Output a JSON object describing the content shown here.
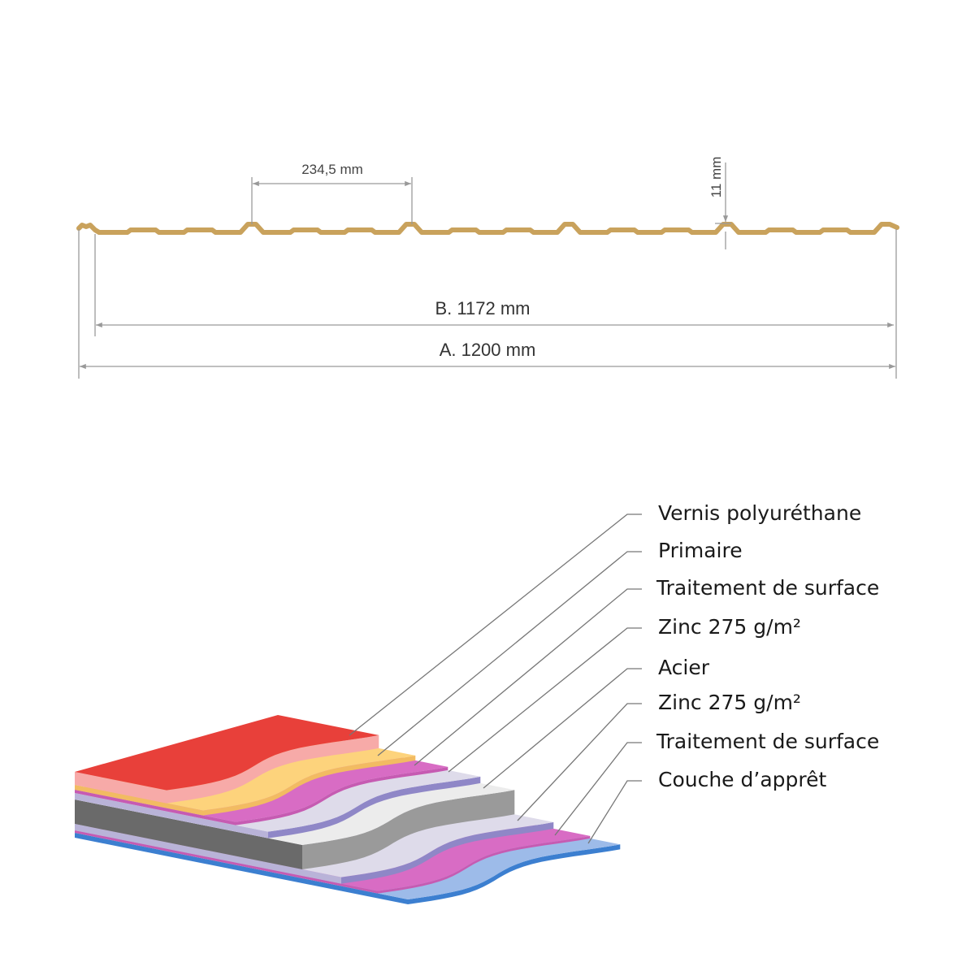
{
  "profile": {
    "pitch_label": "234,5 mm",
    "height_label": "11 mm",
    "width_b_label": "B. 1172 mm",
    "width_a_label": "A. 1200 mm",
    "profile_color": "#c9a25c"
  },
  "layers": [
    {
      "label": "Vernis polyuréthane",
      "top": "#e8403a",
      "side": "#f7aaa8"
    },
    {
      "label": "Primaire",
      "top": "#fdd37c",
      "side": "#f2bb62"
    },
    {
      "label": "Traitement de surface",
      "top": "#d86cc4",
      "side": "#c65bb2"
    },
    {
      "label": "Zinc 275 g/m²",
      "top": "#dedbea",
      "side": "#8f87c7"
    },
    {
      "label": "Acier",
      "top": "#ececec",
      "side": "#9a9a9a"
    },
    {
      "label": "Zinc 275 g/m²",
      "top": "#dedbea",
      "side": "#8f87c7"
    },
    {
      "label": "Traitement de surface",
      "top": "#d86cc4",
      "side": "#c65bb2"
    },
    {
      "label": "Couche d’apprêt",
      "top": "#9dbbe9",
      "side": "#3c7fd0"
    }
  ]
}
